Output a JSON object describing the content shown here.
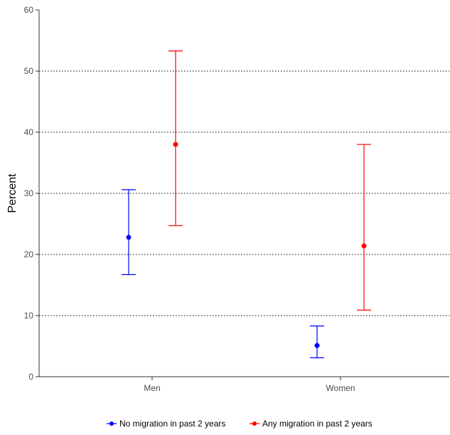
{
  "chart_data": {
    "type": "scatter",
    "categories": [
      "Men",
      "Women"
    ],
    "ylabel": "Percent",
    "xlabel": "",
    "ylim": [
      0,
      60
    ],
    "yticks": [
      "0",
      "10",
      "20",
      "30",
      "40",
      "50",
      "60"
    ],
    "grid": "horizontal dotted",
    "legend_position": "bottom",
    "series": [
      {
        "name": "No migration in past 2 years",
        "color": "#0000ff",
        "points": [
          {
            "category": "Men",
            "y": 22.8,
            "lower": 16.7,
            "upper": 30.6
          },
          {
            "category": "Women",
            "y": 5.1,
            "lower": 3.1,
            "upper": 8.3
          }
        ]
      },
      {
        "name": "Any migration in past 2 years",
        "color": "#ff0000",
        "points": [
          {
            "category": "Men",
            "y": 38.0,
            "lower": 24.7,
            "upper": 53.3
          },
          {
            "category": "Women",
            "y": 21.4,
            "lower": 10.9,
            "upper": 38.0
          }
        ]
      }
    ]
  }
}
